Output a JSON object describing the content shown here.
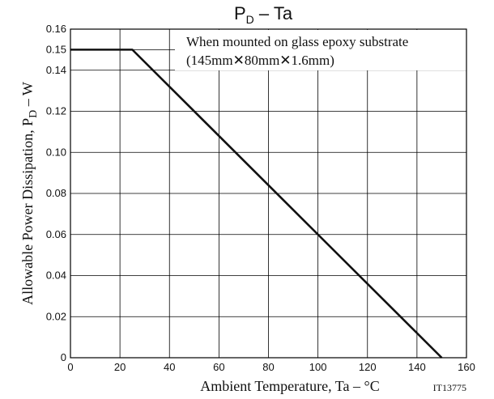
{
  "chart_data": {
    "type": "line",
    "title_main": "P",
    "title_sub": "D",
    "title_rest": " – Ta",
    "ylabel_main": "Allowable Power Dissipation, P",
    "ylabel_sub": "D",
    "ylabel_rest": " – W",
    "xlabel": "Ambient Temperature, Ta  –  °C",
    "xlim": [
      0,
      160
    ],
    "ylim": [
      0,
      0.16
    ],
    "xticks": [
      0,
      20,
      40,
      60,
      80,
      100,
      120,
      140,
      160
    ],
    "xtick_labels": [
      "0",
      "20",
      "40",
      "60",
      "80",
      "100",
      "120",
      "140",
      "160"
    ],
    "yticks": [
      0,
      0.02,
      0.04,
      0.06,
      0.08,
      0.1,
      0.12,
      0.14,
      0.15,
      0.16
    ],
    "ytick_labels": [
      "0",
      "0.02",
      "0.04",
      "0.06",
      "0.08",
      "0.10",
      "0.12",
      "0.14",
      "0.15",
      "0.16"
    ],
    "grid": true,
    "series": [
      {
        "x": [
          0,
          25,
          150
        ],
        "y": [
          0.15,
          0.15,
          0
        ]
      }
    ],
    "annotation_line1": "When mounted on glass epoxy substrate",
    "annotation_line2": "(145mm✕80mm✕1.6mm)",
    "figure_code": "IT13775",
    "colors": {
      "line": "#111111",
      "grid": "#000000",
      "background": "#ffffff"
    }
  }
}
